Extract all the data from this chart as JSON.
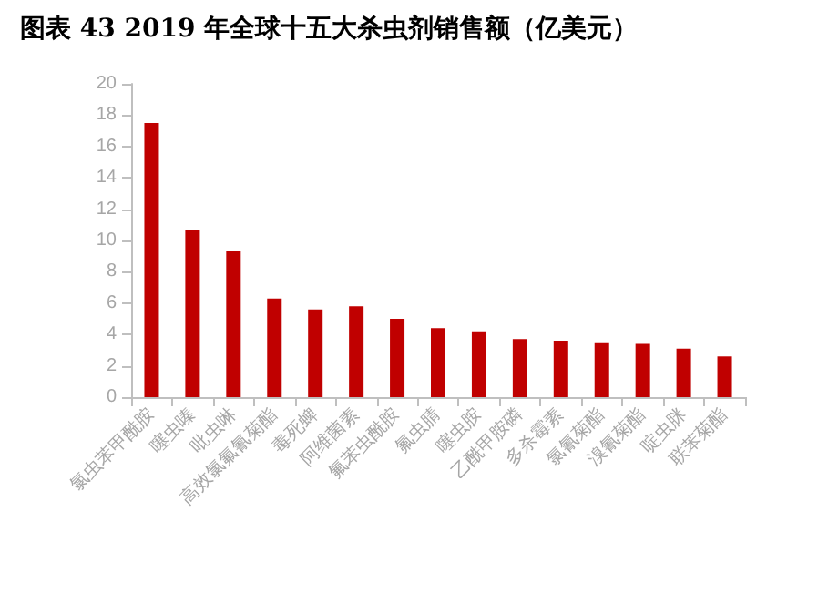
{
  "chart_data": {
    "type": "bar",
    "title": "图表 43 2019 年全球十五大杀虫剂销售额（亿美元）",
    "categories": [
      "氯虫苯甲酰胺",
      "噻虫嗪",
      "吡虫啉",
      "高效氯氟氰菊酯",
      "毒死蜱",
      "阿维菌素",
      "氟苯虫酰胺",
      "氟虫腈",
      "噻虫胺",
      "乙酰甲胺磷",
      "多杀霉素",
      "氯氰菊酯",
      "溴氰菊酯",
      "啶虫脒",
      "联苯菊酯"
    ],
    "values": [
      17.5,
      10.7,
      9.3,
      6.3,
      5.6,
      5.8,
      5.0,
      4.4,
      4.2,
      3.7,
      3.6,
      3.5,
      3.4,
      3.1,
      2.6
    ],
    "color": "#c00000",
    "ylim": [
      0,
      20
    ],
    "yticks": [
      0,
      2,
      4,
      6,
      8,
      10,
      12,
      14,
      16,
      18,
      20
    ],
    "grid": false
  }
}
